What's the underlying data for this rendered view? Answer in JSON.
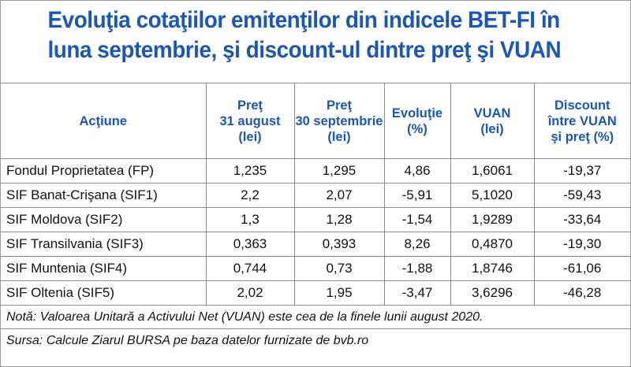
{
  "title": {
    "line1": "Evoluţia cotaţiilor emitenţilor din indicele BET-FI în",
    "line2": "luna septembrie, şi discount-ul dintre preţ şi VUAN"
  },
  "table": {
    "headers": [
      [
        "Acţiune"
      ],
      [
        "Preţ",
        "31 august",
        "(lei)"
      ],
      [
        "Preţ",
        "30 septembrie",
        "(lei)"
      ],
      [
        "Evoluţie",
        "(%)"
      ],
      [
        "VUAN",
        "(lei)"
      ],
      [
        "Discount",
        "între VUAN",
        "şi preţ (%)"
      ]
    ],
    "rows": [
      [
        "Fondul Proprietatea (FP)",
        "1,235",
        "1,295",
        "4,86",
        "1,6061",
        "-19,37"
      ],
      [
        "SIF Banat-Crişana (SIF1)",
        "2,2",
        "2,07",
        "-5,91",
        "5,1020",
        "-59,43"
      ],
      [
        "SIF Moldova (SIF2)",
        "1,3",
        "1,28",
        "-1,54",
        "1,9289",
        "-33,64"
      ],
      [
        "SIF Transilvania (SIF3)",
        "0,363",
        "0,393",
        "8,26",
        "0,4870",
        "-19,30"
      ],
      [
        "SIF Muntenia (SIF4)",
        "0,744",
        "0,73",
        "-1,88",
        "1,8746",
        "-61,06"
      ],
      [
        "SIF Oltenia (SIF5)",
        "2,02",
        "1,95",
        "-3,47",
        "3,6296",
        "-46,28"
      ]
    ]
  },
  "footer": {
    "note": "Notă: Valoarea Unitară a Activului Net (VUAN) este cea de la finele lunii august 2020.",
    "source": "Sursa: Calcule Ziarul BURSA pe baza datelor furnizate de bvb.ro"
  },
  "colors": {
    "accent": "#1b57b8",
    "text": "#111111",
    "grid": "#8c8c8c"
  }
}
